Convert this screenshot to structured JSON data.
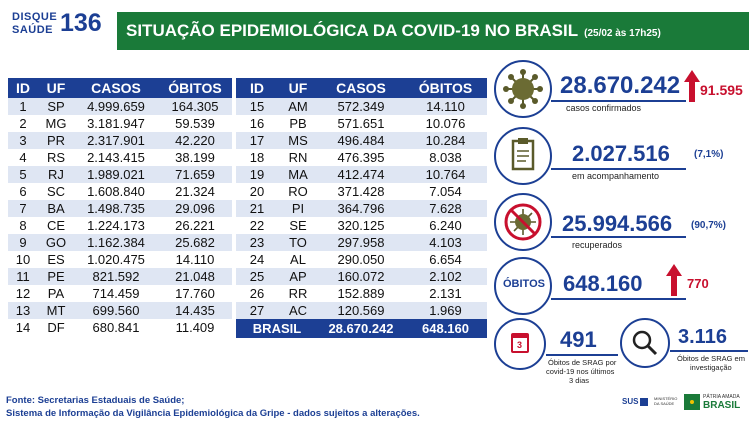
{
  "logo": {
    "line1": "DISQUE",
    "line2": "SAÚDE",
    "number": "136"
  },
  "title": {
    "main": "SITUAÇÃO EPIDEMIOLÓGICA DA COVID-19 NO BRASIL",
    "date": "(25/02 às 17h25)"
  },
  "table": {
    "headers": [
      "ID",
      "UF",
      "CASOS",
      "ÓBITOS"
    ],
    "left": [
      [
        "1",
        "SP",
        "4.999.659",
        "164.305"
      ],
      [
        "2",
        "MG",
        "3.181.947",
        "59.539"
      ],
      [
        "3",
        "PR",
        "2.317.901",
        "42.220"
      ],
      [
        "4",
        "RS",
        "2.143.415",
        "38.199"
      ],
      [
        "5",
        "RJ",
        "1.989.021",
        "71.659"
      ],
      [
        "6",
        "SC",
        "1.608.840",
        "21.324"
      ],
      [
        "7",
        "BA",
        "1.498.735",
        "29.096"
      ],
      [
        "8",
        "CE",
        "1.224.173",
        "26.221"
      ],
      [
        "9",
        "GO",
        "1.162.384",
        "25.682"
      ],
      [
        "10",
        "ES",
        "1.020.475",
        "14.110"
      ],
      [
        "11",
        "PE",
        "821.592",
        "21.048"
      ],
      [
        "12",
        "PA",
        "714.459",
        "17.760"
      ],
      [
        "13",
        "MT",
        "699.560",
        "14.435"
      ],
      [
        "14",
        "DF",
        "680.841",
        "11.409"
      ]
    ],
    "right": [
      [
        "15",
        "AM",
        "572.349",
        "14.110"
      ],
      [
        "16",
        "PB",
        "571.651",
        "10.076"
      ],
      [
        "17",
        "MS",
        "496.484",
        "10.284"
      ],
      [
        "18",
        "RN",
        "476.395",
        "8.038"
      ],
      [
        "19",
        "MA",
        "412.474",
        "10.764"
      ],
      [
        "20",
        "RO",
        "371.428",
        "7.054"
      ],
      [
        "21",
        "PI",
        "364.796",
        "7.628"
      ],
      [
        "22",
        "SE",
        "320.125",
        "6.240"
      ],
      [
        "23",
        "TO",
        "297.958",
        "4.103"
      ],
      [
        "24",
        "AL",
        "290.050",
        "6.654"
      ],
      [
        "25",
        "AP",
        "160.072",
        "2.102"
      ],
      [
        "26",
        "RR",
        "152.889",
        "2.131"
      ],
      [
        "27",
        "AC",
        "120.569",
        "1.969"
      ]
    ],
    "total": {
      "label": "BRASIL",
      "casos": "28.670.242",
      "obitos": "648.160"
    }
  },
  "stats": {
    "confirmed": {
      "value": "28.670.242",
      "increase": "91.595",
      "label": "casos confirmados"
    },
    "monitoring": {
      "value": "2.027.516",
      "pct": "(7,1%)",
      "label": "em acompanhamento"
    },
    "recovered": {
      "value": "25.994.566",
      "pct": "(90,7%)",
      "label": "recuperados"
    },
    "deaths": {
      "badge": "ÓBITOS",
      "value": "648.160",
      "increase": "770"
    },
    "srag_confirmed": {
      "value": "491",
      "label1": "Óbitos de SRAG por",
      "label2": "covid-19 nos últimos",
      "label3": "3 dias",
      "calendar": "3"
    },
    "srag_investigation": {
      "value": "3.116",
      "label1": "Óbitos de SRAG em",
      "label2": "investigação"
    }
  },
  "footer": {
    "line1": "Fonte: Secretarias Estaduais de Saúde;",
    "line2": "Sistema de Informação da Vigilância Epidemiológica da Gripe - dados sujeitos a alterações."
  },
  "footer_logos": {
    "sus": "SUS",
    "ministry": "MINISTÉRIO DA SAÚDE",
    "patria1": "PÁTRIA AMADA",
    "patria2": "BRASIL"
  },
  "colors": {
    "navy": "#1c3f94",
    "green": "#1a7a39",
    "red": "#c8102e",
    "stripe": "#dfe6f3"
  }
}
